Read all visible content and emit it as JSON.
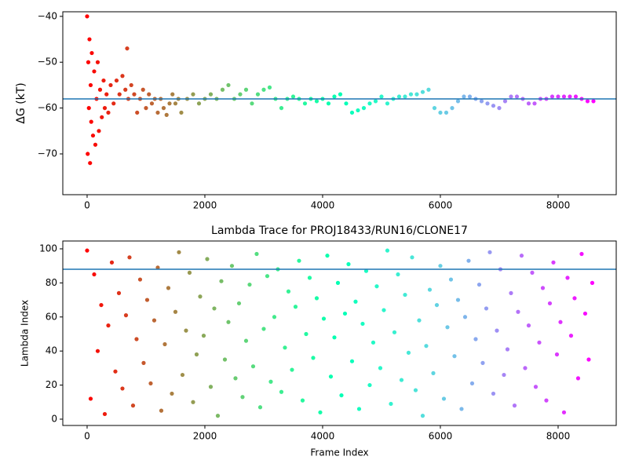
{
  "chart_data": [
    {
      "type": "scatter",
      "ylabel": "ΔG (kT)",
      "colormap": "rainbow_r",
      "hline": -58,
      "hline_color": "#1f77b4",
      "xlim": [
        -413,
        8987
      ],
      "ylim": [
        -78.9,
        -39.0
      ],
      "xticks": [
        0,
        2000,
        4000,
        6000,
        8000
      ],
      "yticks": [
        {
          "value": -70,
          "label": "−70"
        },
        {
          "value": -60,
          "label": "−60"
        },
        {
          "value": -50,
          "label": "−50"
        },
        {
          "value": -40,
          "label": "−40"
        }
      ],
      "x": [
        0,
        10,
        20,
        30,
        40,
        50,
        60,
        70,
        80,
        100,
        120,
        140,
        160,
        180,
        200,
        220,
        250,
        280,
        300,
        330,
        360,
        400,
        450,
        500,
        550,
        600,
        650,
        680,
        700,
        750,
        800,
        850,
        900,
        950,
        1000,
        1050,
        1100,
        1150,
        1200,
        1250,
        1300,
        1350,
        1400,
        1450,
        1500,
        1550,
        1600,
        1700,
        1800,
        1900,
        2000,
        2100,
        2200,
        2300,
        2400,
        2500,
        2600,
        2700,
        2800,
        2900,
        3000,
        3100,
        3200,
        3300,
        3400,
        3500,
        3600,
        3700,
        3800,
        3900,
        4000,
        4100,
        4200,
        4300,
        4400,
        4500,
        4600,
        4700,
        4800,
        4900,
        5000,
        5100,
        5200,
        5300,
        5400,
        5500,
        5600,
        5700,
        5800,
        5900,
        6000,
        6100,
        6200,
        6300,
        6400,
        6500,
        6600,
        6700,
        6800,
        6900,
        7000,
        7100,
        7200,
        7300,
        7400,
        7500,
        7600,
        7700,
        7800,
        7900,
        8000,
        8100,
        8200,
        8300,
        8400,
        8500,
        8600
      ],
      "values": [
        -40,
        -70,
        -50,
        -60,
        -45,
        -72,
        -55,
        -63,
        -48,
        -66,
        -52,
        -68,
        -58,
        -50,
        -65,
        -56,
        -62,
        -54,
        -60,
        -57,
        -61,
        -55,
        -59,
        -54,
        -57,
        -53,
        -56,
        -47,
        -58,
        -55,
        -57,
        -61,
        -58,
        -56,
        -60,
        -57,
        -59,
        -58,
        -61,
        -58,
        -60,
        -61.5,
        -59,
        -57,
        -59,
        -58,
        -61,
        -58,
        -57,
        -59,
        -58,
        -57,
        -58,
        -56,
        -55,
        -58,
        -57,
        -56,
        -59,
        -57,
        -56,
        -55.5,
        -58,
        -60,
        -58,
        -57.5,
        -58,
        -59,
        -58,
        -58.5,
        -58,
        -59,
        -57.5,
        -57,
        -59,
        -61,
        -60.5,
        -60,
        -59,
        -58.5,
        -57.5,
        -59,
        -58,
        -57.5,
        -57.5,
        -57,
        -57,
        -56.5,
        -56,
        -60,
        -61,
        -61,
        -60,
        -58.5,
        -57.5,
        -57.5,
        -58,
        -58.5,
        -59,
        -59.5,
        -60,
        -58.5,
        -57.5,
        -57.5,
        -58,
        -59,
        -59,
        -58,
        -58,
        -57.5,
        -57.5,
        -57.5,
        -57.5,
        -57.5,
        -58,
        -58.5,
        -58.5
      ]
    },
    {
      "type": "scatter",
      "title": "Lambda Trace for PROJ18433/RUN16/CLONE17",
      "xlabel": "Frame Index",
      "ylabel": "Lambda Index",
      "colormap": "rainbow_r",
      "hline": 88,
      "hline_color": "#1f77b4",
      "xlim": [
        -413,
        8987
      ],
      "ylim": [
        -3.7,
        104.6
      ],
      "xticks": [
        0,
        2000,
        4000,
        6000,
        8000
      ],
      "yticks": [
        0,
        20,
        40,
        60,
        80,
        100
      ],
      "x": [
        0,
        60,
        120,
        180,
        240,
        300,
        360,
        420,
        480,
        540,
        600,
        660,
        720,
        780,
        840,
        900,
        960,
        1020,
        1080,
        1140,
        1200,
        1260,
        1320,
        1380,
        1440,
        1500,
        1560,
        1620,
        1680,
        1740,
        1800,
        1860,
        1920,
        1980,
        2040,
        2100,
        2160,
        2220,
        2280,
        2340,
        2400,
        2460,
        2520,
        2580,
        2640,
        2700,
        2760,
        2820,
        2880,
        2940,
        3000,
        3060,
        3120,
        3180,
        3240,
        3300,
        3360,
        3420,
        3480,
        3540,
        3600,
        3660,
        3720,
        3780,
        3840,
        3900,
        3960,
        4020,
        4080,
        4140,
        4200,
        4260,
        4320,
        4380,
        4440,
        4500,
        4560,
        4620,
        4680,
        4740,
        4800,
        4860,
        4920,
        4980,
        5040,
        5100,
        5160,
        5220,
        5280,
        5340,
        5400,
        5460,
        5520,
        5580,
        5640,
        5700,
        5760,
        5820,
        5880,
        5940,
        6000,
        6060,
        6120,
        6180,
        6240,
        6300,
        6360,
        6420,
        6480,
        6540,
        6600,
        6660,
        6720,
        6780,
        6840,
        6900,
        6960,
        7020,
        7080,
        7140,
        7200,
        7260,
        7320,
        7380,
        7440,
        7500,
        7560,
        7620,
        7680,
        7740,
        7800,
        7860,
        7920,
        7980,
        8040,
        8100,
        8160,
        8220,
        8280,
        8340,
        8400,
        8460,
        8520,
        8580
      ],
      "values": [
        99,
        12,
        85,
        40,
        67,
        3,
        55,
        92,
        28,
        74,
        18,
        61,
        95,
        8,
        47,
        82,
        33,
        70,
        21,
        58,
        89,
        5,
        44,
        77,
        15,
        63,
        98,
        26,
        52,
        86,
        10,
        38,
        72,
        49,
        94,
        19,
        65,
        2,
        81,
        35,
        57,
        90,
        24,
        68,
        13,
        46,
        79,
        31,
        97,
        7,
        53,
        84,
        22,
        60,
        88,
        16,
        42,
        75,
        29,
        66,
        93,
        11,
        50,
        83,
        36,
        71,
        4,
        59,
        96,
        25,
        48,
        80,
        14,
        62,
        91,
        34,
        69,
        6,
        56,
        87,
        20,
        45,
        78,
        30,
        64,
        99,
        9,
        51,
        85,
        23,
        73,
        39,
        95,
        17,
        58,
        2,
        43,
        76,
        27,
        67,
        90,
        12,
        54,
        82,
        37,
        70,
        6,
        60,
        93,
        21,
        47,
        79,
        33,
        65,
        98,
        15,
        52,
        88,
        26,
        41,
        74,
        8,
        63,
        96,
        30,
        55,
        86,
        19,
        45,
        77,
        11,
        68,
        92,
        38,
        57,
        4,
        83,
        49,
        71,
        24,
        97,
        62,
        35,
        80
      ]
    }
  ]
}
